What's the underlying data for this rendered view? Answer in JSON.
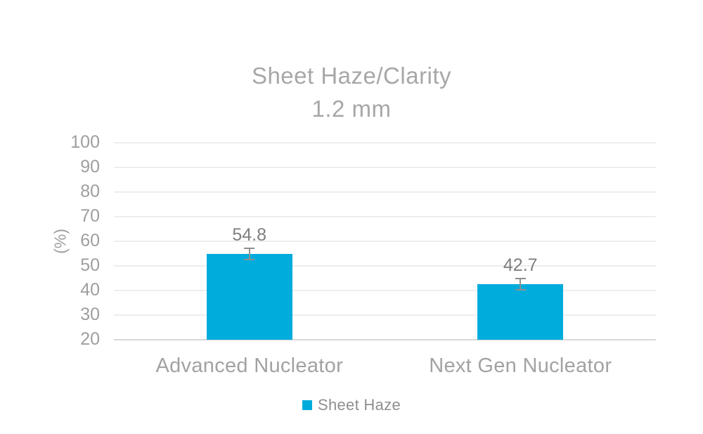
{
  "chart_data": {
    "type": "bar",
    "title": "Sheet Haze/Clarity",
    "subtitle": "1.2 mm",
    "ylabel": "(%)",
    "xlabel": "",
    "ylim": [
      20,
      100
    ],
    "ytick_step": 10,
    "yticks": [
      100,
      90,
      80,
      70,
      60,
      50,
      40,
      30,
      20
    ],
    "grid": true,
    "legend_position": "bottom",
    "categories": [
      "Advanced Nucleator",
      "Next Gen Nucleator"
    ],
    "series": [
      {
        "name": "Sheet Haze",
        "values": [
          54.8,
          42.7
        ],
        "errors": [
          2.3,
          2.3
        ],
        "data_labels": [
          "54.8",
          "42.7"
        ]
      }
    ]
  },
  "colors": {
    "bar": "#00acdc",
    "error_bar": "#8f8f8f",
    "gridline": "#ededed",
    "axis_line": "#d8d8d8",
    "title_text": "#a7a7a7",
    "tick_text": "#9e9e9e",
    "data_label_text": "#7f7f7f",
    "category_text": "#a2a2a2",
    "legend_text": "#8f8f8f"
  }
}
